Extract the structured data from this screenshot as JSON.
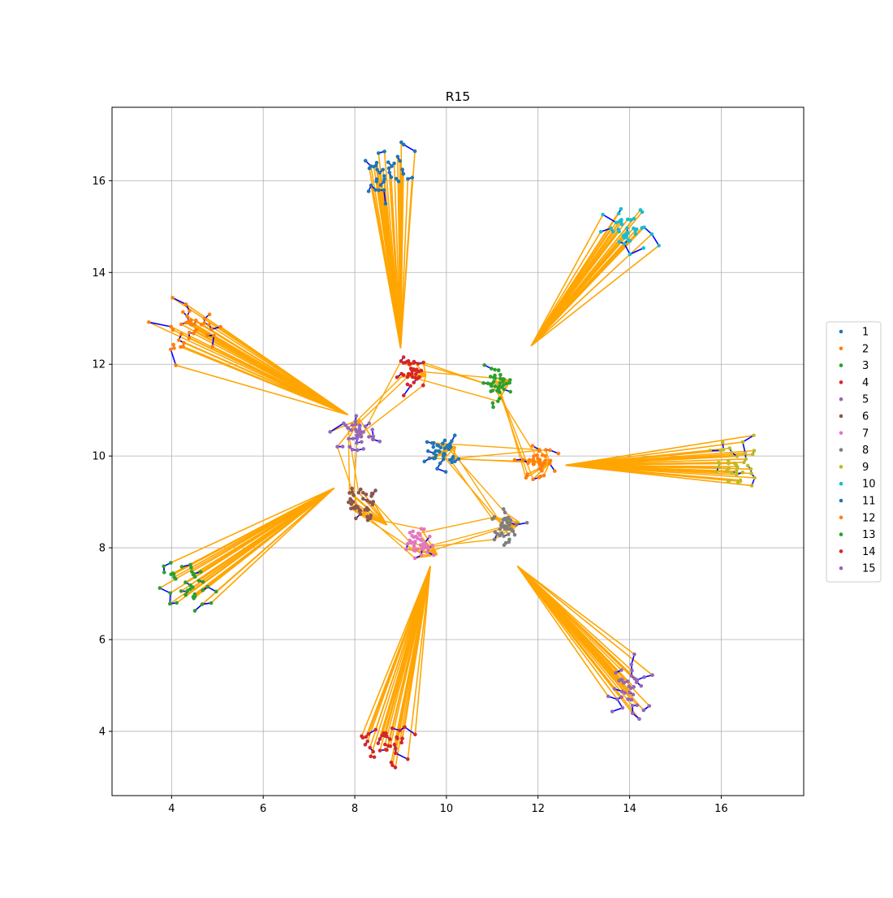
{
  "chart_data": {
    "type": "scatter",
    "title": "R15",
    "xlabel": "",
    "ylabel": "",
    "xlim": [
      2.7,
      17.8
    ],
    "ylim": [
      2.6,
      17.6
    ],
    "xticks": [
      4,
      6,
      8,
      10,
      12,
      14,
      16
    ],
    "yticks": [
      4,
      6,
      8,
      10,
      12,
      14,
      16
    ],
    "grid": true,
    "legend_position": "right",
    "edge_colors": {
      "intra_cluster": "#0000ff",
      "inter_cluster": "#ffa500"
    },
    "series": [
      {
        "name": "1",
        "color": "#1f77b4",
        "center": [
          8.7,
          16.2
        ],
        "hub": [
          9.0,
          12.35
        ]
      },
      {
        "name": "2",
        "color": "#ff7f0e",
        "center": [
          4.4,
          12.75
        ],
        "hub": [
          7.85,
          10.9
        ]
      },
      {
        "name": "3",
        "color": "#2ca02c",
        "center": [
          4.3,
          7.2
        ],
        "hub": [
          7.55,
          9.3
        ]
      },
      {
        "name": "4",
        "color": "#d62728",
        "center": [
          8.65,
          3.8
        ],
        "hub": [
          9.65,
          7.6
        ]
      },
      {
        "name": "5",
        "color": "#9467bd",
        "center": [
          14.0,
          5.0
        ],
        "hub": [
          11.55,
          7.6
        ]
      },
      {
        "name": "6",
        "color": "#8c564b",
        "center": [
          8.15,
          9.0
        ],
        "hub": [
          8.7,
          8.5
        ]
      },
      {
        "name": "7",
        "color": "#e377c2",
        "center": [
          9.4,
          8.1
        ],
        "hub": [
          9.8,
          7.85
        ]
      },
      {
        "name": "8",
        "color": "#7f7f7f",
        "center": [
          11.3,
          8.45
        ],
        "hub": [
          11.6,
          8.55
        ]
      },
      {
        "name": "9",
        "color": "#bcbd22",
        "center": [
          16.3,
          9.85
        ],
        "hub": [
          12.6,
          9.8
        ]
      },
      {
        "name": "10",
        "color": "#17becf",
        "center": [
          14.0,
          14.85
        ],
        "hub": [
          11.85,
          12.4
        ]
      },
      {
        "name": "11",
        "color": "#1f77b4",
        "center": [
          9.9,
          10.1
        ],
        "hub": [
          10.2,
          10.2
        ]
      },
      {
        "name": "12",
        "color": "#ff7f0e",
        "center": [
          12.0,
          9.85
        ],
        "hub": [
          12.25,
          9.85
        ]
      },
      {
        "name": "13",
        "color": "#2ca02c",
        "center": [
          11.1,
          11.6
        ],
        "hub": [
          11.4,
          11.65
        ]
      },
      {
        "name": "14",
        "color": "#d62728",
        "center": [
          9.3,
          11.8
        ],
        "hub": [
          9.55,
          11.75
        ]
      },
      {
        "name": "15",
        "color": "#9467bd",
        "center": [
          8.1,
          10.5
        ],
        "hub": [
          8.1,
          10.8
        ]
      }
    ]
  }
}
